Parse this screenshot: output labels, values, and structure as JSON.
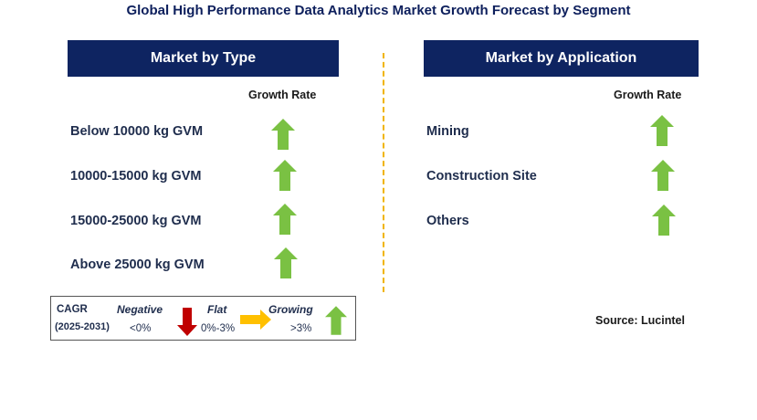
{
  "title": "Global High Performance Data Analytics Market Growth Forecast by Segment",
  "type_panel": {
    "header": "Market by Type",
    "growth_label": "Growth Rate",
    "items": [
      {
        "label": "Below 10000 kg GVM",
        "trend": "growing"
      },
      {
        "label": "10000-15000 kg GVM",
        "trend": "growing"
      },
      {
        "label": "15000-25000 kg GVM",
        "trend": "growing"
      },
      {
        "label": "Above 25000 kg GVM",
        "trend": "growing"
      }
    ]
  },
  "application_panel": {
    "header": "Market by Application",
    "growth_label": "Growth Rate",
    "items": [
      {
        "label": "Mining",
        "trend": "growing"
      },
      {
        "label": "Construction Site",
        "trend": "growing"
      },
      {
        "label": "Others",
        "trend": "growing"
      }
    ]
  },
  "legend": {
    "cagr_label": "CAGR",
    "period": "(2025-2031)",
    "negative_label": "Negative",
    "negative_range": "<0%",
    "flat_label": "Flat",
    "flat_range": "0%-3%",
    "growing_label": "Growing",
    "growing_range": ">3%"
  },
  "source": "Source: Lucintel",
  "colors": {
    "header_bg": "#0e2461",
    "growing": "#7ac143",
    "negative": "#c00000",
    "flat": "#ffc000",
    "divider": "#f0b400"
  }
}
